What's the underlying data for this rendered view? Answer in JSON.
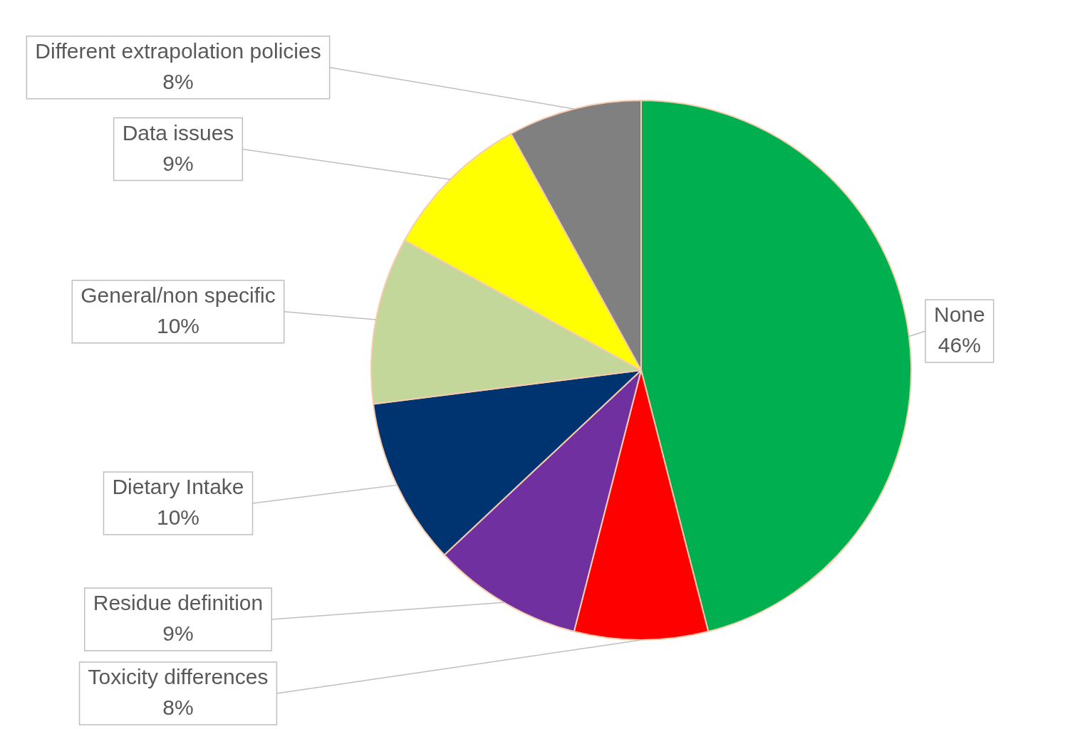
{
  "chart_data": {
    "type": "pie",
    "categories": [
      "None",
      "Toxicity differences",
      "Residue definition",
      "Dietary Intake",
      "General/non specific",
      "Data issues",
      "Different extrapolation policies"
    ],
    "values": [
      46,
      8,
      9,
      10,
      10,
      9,
      8
    ],
    "value_labels": [
      "46%",
      "8%",
      "9%",
      "10%",
      "10%",
      "9%",
      "8%"
    ],
    "colors": [
      "#00b050",
      "#ff0000",
      "#7030a0",
      "#003470",
      "#c4d79b",
      "#ffff00",
      "#808080"
    ],
    "legend": false
  }
}
